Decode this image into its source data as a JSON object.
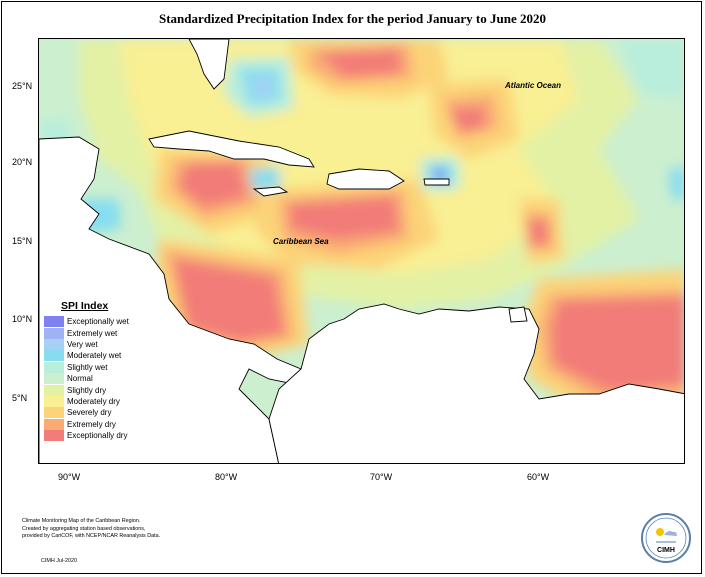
{
  "title": "Standardized Precipitation Index for the period January to June 2020",
  "map": {
    "latitude_labels": [
      "25°N",
      "20°N",
      "15°N",
      "10°N",
      "5°N"
    ],
    "longitude_labels": [
      "90°W",
      "80°W",
      "70°W",
      "60°W"
    ],
    "annotations": {
      "atlantic": "Atlantic Ocean",
      "caribbean": "Caribbean Sea"
    }
  },
  "legend": {
    "title": "SPI Index",
    "items": [
      {
        "label": "Exceptionally wet",
        "color": "#8080f0"
      },
      {
        "label": "Extremely wet",
        "color": "#9fb2f3"
      },
      {
        "label": "Very wet",
        "color": "#a9d0f4"
      },
      {
        "label": "Moderately wet",
        "color": "#87ddf0"
      },
      {
        "label": "Slightly wet",
        "color": "#b9eedc"
      },
      {
        "label": "Normal",
        "color": "#ccefcf"
      },
      {
        "label": "Slightly dry",
        "color": "#e3f1a5"
      },
      {
        "label": "Moderately dry",
        "color": "#f9ef93"
      },
      {
        "label": "Severely dry",
        "color": "#fcd378"
      },
      {
        "label": "Extremely dry",
        "color": "#f9ab73"
      },
      {
        "label": "Exceptionally dry",
        "color": "#f27c78"
      }
    ]
  },
  "footer": {
    "credit_lines": [
      "Climate Monitoring Map of the Caribbean Region.",
      "Created by aggregating station based observations,",
      "provided by CariCOF, with NCEP/NCAR Reanalysis Data."
    ],
    "date": "CIMH Jul-2020",
    "logo_text": "CIMH"
  }
}
